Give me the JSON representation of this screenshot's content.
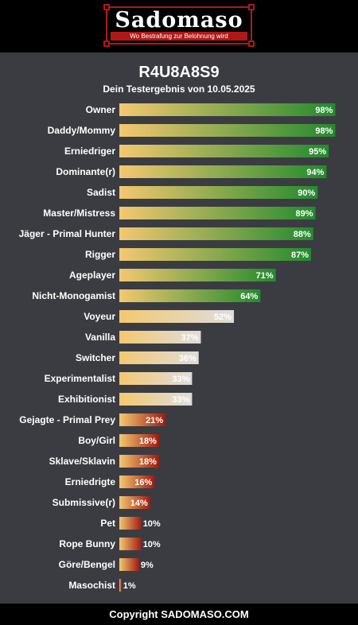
{
  "header": {
    "logo_text": "Sadomaso",
    "logo_tagline": "Wo Bestrafung zur Belohnung wird"
  },
  "page": {
    "title": "R4U8A8S9",
    "subtitle": "Dein Testergebnis von 10.05.2025"
  },
  "colors": {
    "background": "#3b3c42",
    "header": "#000000",
    "bar_start": "#f4c870",
    "bar_high": "#228a2e",
    "bar_mid": "#dddddd",
    "bar_low": "#a01a10",
    "text": "#ffffff"
  },
  "chart_data": {
    "type": "bar",
    "orientation": "horizontal",
    "xlim": [
      0,
      100
    ],
    "unit": "%",
    "grid": false,
    "categories": [
      "Owner",
      "Daddy/Mommy",
      "Erniedriger",
      "Dominante(r)",
      "Sadist",
      "Master/Mistress",
      "Jäger - Primal Hunter",
      "Rigger",
      "Ageplayer",
      "Nicht-Monogamist",
      "Voyeur",
      "Vanilla",
      "Switcher",
      "Experimentalist",
      "Exhibitionist",
      "Gejagte - Primal Prey",
      "Boy/Girl",
      "Sklave/Sklavin",
      "Erniedrigte",
      "Submissive(r)",
      "Pet",
      "Rope Bunny",
      "Göre/Bengel",
      "Masochist"
    ],
    "values": [
      98,
      98,
      95,
      94,
      90,
      89,
      88,
      87,
      71,
      64,
      52,
      37,
      36,
      33,
      33,
      21,
      18,
      18,
      16,
      14,
      10,
      10,
      9,
      1
    ],
    "value_labels": [
      "98%",
      "98%",
      "95%",
      "94%",
      "90%",
      "89%",
      "88%",
      "87%",
      "71%",
      "64%",
      "52%",
      "37%",
      "36%",
      "33%",
      "33%",
      "21%",
      "18%",
      "18%",
      "16%",
      "14%",
      "10%",
      "10%",
      "9%",
      "1%"
    ]
  },
  "footer": {
    "copyright": "Copyright SADOMASO.COM"
  }
}
